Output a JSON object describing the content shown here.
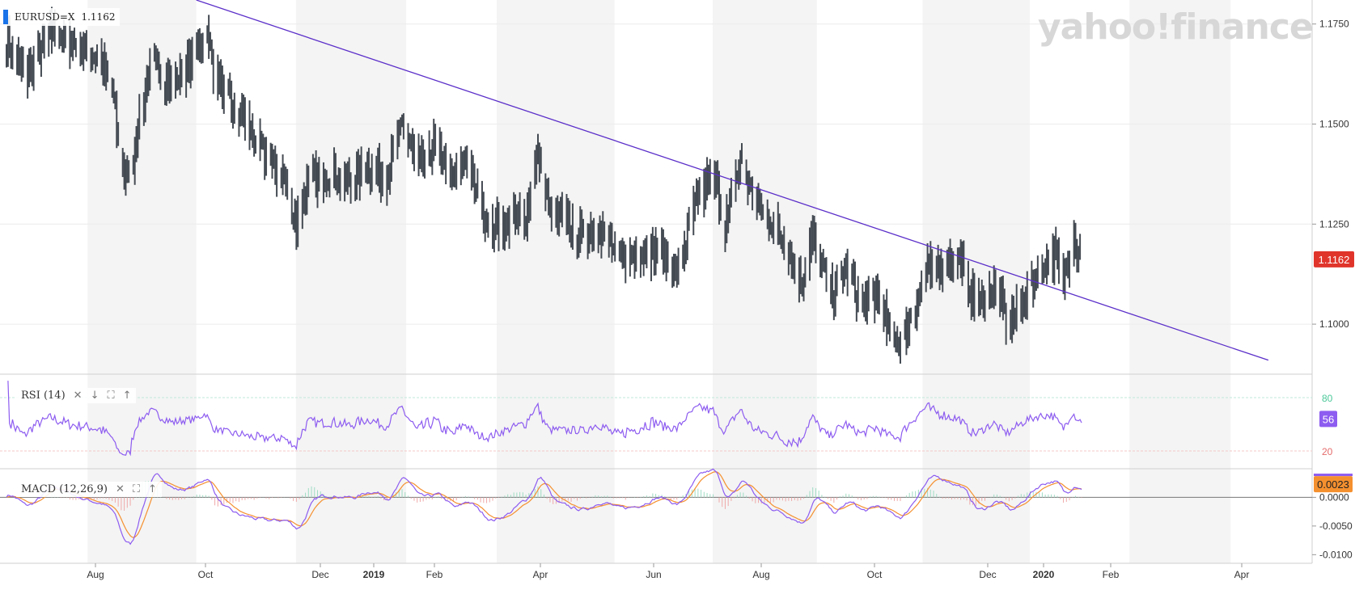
{
  "watermark": "yahoo!finance",
  "symbol": {
    "label": "EURUSD=X",
    "price": "1.1162",
    "swatch_color": "#1a73e8"
  },
  "price_badge": {
    "text": "1.1162",
    "color": "#e0342b"
  },
  "rsi": {
    "label": "RSI (14)",
    "value_badge": "56",
    "upper": "80",
    "lower": "20",
    "color": "#8d5cf0"
  },
  "macd": {
    "label": "MACD (12,26,9)",
    "value_badge": "0.0023",
    "macd_color": "#8d5cf0",
    "signal_color": "#f5902f"
  },
  "controls": {
    "close": "✕",
    "down": "↓",
    "expand": "⛶",
    "up": "↑"
  },
  "colors": {
    "bar": "#444a52",
    "trendline": "#5b2fc9",
    "band": "#f4f4f4",
    "grid": "#ececec"
  },
  "chart_data": [
    {
      "type": "ohlc",
      "series_name": "EURUSD=X",
      "x_axis_labels": [
        "Aug",
        "Oct",
        "Dec",
        "2019",
        "Feb",
        "Apr",
        "Jun",
        "Aug",
        "Oct",
        "Dec",
        "2020",
        "Feb",
        "Apr"
      ],
      "y_tick_labels": [
        "1.1750",
        "1.1500",
        "1.1250",
        "1.1000"
      ],
      "ylim": [
        1.0875,
        1.181
      ],
      "last_price": 1.1162,
      "close_anchors": [
        {
          "t": 0,
          "v": 1.171
        },
        {
          "t": 12,
          "v": 1.162
        },
        {
          "t": 30,
          "v": 1.173
        },
        {
          "t": 50,
          "v": 1.169
        },
        {
          "t": 62,
          "v": 1.166
        },
        {
          "t": 70,
          "v": 1.159
        },
        {
          "t": 76,
          "v": 1.14
        },
        {
          "t": 82,
          "v": 1.135
        },
        {
          "t": 86,
          "v": 1.148
        },
        {
          "t": 96,
          "v": 1.165
        },
        {
          "t": 110,
          "v": 1.16
        },
        {
          "t": 122,
          "v": 1.165
        },
        {
          "t": 132,
          "v": 1.174
        },
        {
          "t": 138,
          "v": 1.162
        },
        {
          "t": 146,
          "v": 1.157
        },
        {
          "t": 158,
          "v": 1.151
        },
        {
          "t": 170,
          "v": 1.143
        },
        {
          "t": 184,
          "v": 1.136
        },
        {
          "t": 192,
          "v": 1.125
        },
        {
          "t": 200,
          "v": 1.136
        },
        {
          "t": 214,
          "v": 1.137
        },
        {
          "t": 228,
          "v": 1.135
        },
        {
          "t": 240,
          "v": 1.14
        },
        {
          "t": 252,
          "v": 1.136
        },
        {
          "t": 262,
          "v": 1.15
        },
        {
          "t": 272,
          "v": 1.14
        },
        {
          "t": 284,
          "v": 1.145
        },
        {
          "t": 296,
          "v": 1.136
        },
        {
          "t": 304,
          "v": 1.141
        },
        {
          "t": 312,
          "v": 1.132
        },
        {
          "t": 320,
          "v": 1.125
        },
        {
          "t": 332,
          "v": 1.124
        },
        {
          "t": 344,
          "v": 1.128
        },
        {
          "t": 352,
          "v": 1.142
        },
        {
          "t": 360,
          "v": 1.128
        },
        {
          "t": 370,
          "v": 1.126
        },
        {
          "t": 382,
          "v": 1.122
        },
        {
          "t": 392,
          "v": 1.125
        },
        {
          "t": 404,
          "v": 1.117
        },
        {
          "t": 416,
          "v": 1.117
        },
        {
          "t": 430,
          "v": 1.119
        },
        {
          "t": 444,
          "v": 1.113
        },
        {
          "t": 456,
          "v": 1.129
        },
        {
          "t": 468,
          "v": 1.138
        },
        {
          "t": 476,
          "v": 1.124
        },
        {
          "t": 486,
          "v": 1.141
        },
        {
          "t": 496,
          "v": 1.13
        },
        {
          "t": 508,
          "v": 1.125
        },
        {
          "t": 518,
          "v": 1.118
        },
        {
          "t": 526,
          "v": 1.11
        },
        {
          "t": 534,
          "v": 1.122
        },
        {
          "t": 546,
          "v": 1.108
        },
        {
          "t": 556,
          "v": 1.114
        },
        {
          "t": 566,
          "v": 1.105
        },
        {
          "t": 576,
          "v": 1.107
        },
        {
          "t": 584,
          "v": 1.099
        },
        {
          "t": 592,
          "v": 1.095
        },
        {
          "t": 600,
          "v": 1.103
        },
        {
          "t": 610,
          "v": 1.113
        },
        {
          "t": 622,
          "v": 1.116
        },
        {
          "t": 632,
          "v": 1.116
        },
        {
          "t": 642,
          "v": 1.104
        },
        {
          "t": 654,
          "v": 1.109
        },
        {
          "t": 664,
          "v": 1.1
        },
        {
          "t": 674,
          "v": 1.107
        },
        {
          "t": 684,
          "v": 1.114
        },
        {
          "t": 694,
          "v": 1.118
        },
        {
          "t": 700,
          "v": 1.11
        },
        {
          "t": 706,
          "v": 1.122
        },
        {
          "t": 712,
          "v": 1.116
        }
      ],
      "trendline": {
        "start": {
          "t": 130,
          "v": 1.181
        },
        "end": {
          "t": 840,
          "v": 1.091
        }
      }
    },
    {
      "type": "line",
      "name": "RSI (14)",
      "ylim": [
        0,
        100
      ],
      "y_tick_labels": [
        "80",
        "20"
      ],
      "last_value": 56
    },
    {
      "type": "line",
      "name": "MACD (12,26,9)",
      "ylim": [
        -0.0115,
        0.004
      ],
      "y_tick_labels": [
        "0.0023",
        "0.0000",
        "-0.0050",
        "-0.0100"
      ],
      "last_value": 0.0023
    }
  ]
}
